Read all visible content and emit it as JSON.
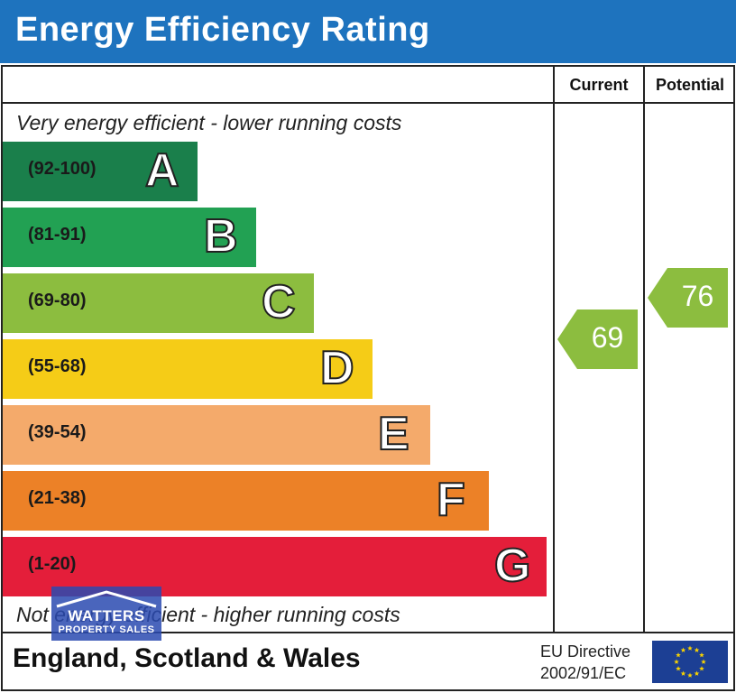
{
  "header": {
    "title": "Energy Efficiency Rating"
  },
  "columns": {
    "current": "Current",
    "potential": "Potential"
  },
  "captions": {
    "top": "Very energy efficient - lower running costs",
    "bottom": "Not energy efficient - higher running costs"
  },
  "footer": {
    "region": "England, Scotland & Wales",
    "directive_line1": "EU Directive",
    "directive_line2": "2002/91/EC"
  },
  "logo": {
    "name": "WATTERS",
    "sub": "PROPERTY SALES"
  },
  "chart_data": {
    "type": "bar",
    "title": "Energy Efficiency Rating",
    "bands": [
      {
        "letter": "A",
        "range": "(92-100)",
        "min": 92,
        "max": 100,
        "color": "#1a7f4b"
      },
      {
        "letter": "B",
        "range": "(81-91)",
        "min": 81,
        "max": 91,
        "color": "#22a153"
      },
      {
        "letter": "C",
        "range": "(69-80)",
        "min": 69,
        "max": 80,
        "color": "#8cbd3f"
      },
      {
        "letter": "D",
        "range": "(55-68)",
        "min": 55,
        "max": 68,
        "color": "#f5cc17"
      },
      {
        "letter": "E",
        "range": "(39-54)",
        "min": 39,
        "max": 54,
        "color": "#f4aa6b"
      },
      {
        "letter": "F",
        "range": "(21-38)",
        "min": 21,
        "max": 38,
        "color": "#ec8127"
      },
      {
        "letter": "G",
        "range": "(1-20)",
        "min": 1,
        "max": 20,
        "color": "#e41e3a"
      }
    ],
    "current": {
      "label": "Current",
      "value": 69,
      "band": "C",
      "color": "#8cbd3f"
    },
    "potential": {
      "label": "Potential",
      "value": 76,
      "band": "C",
      "color": "#8cbd3f"
    }
  },
  "colors": {
    "header": "#1e73be",
    "eu_flag": "#1c3f94",
    "eu_stars": "#f8d200"
  }
}
